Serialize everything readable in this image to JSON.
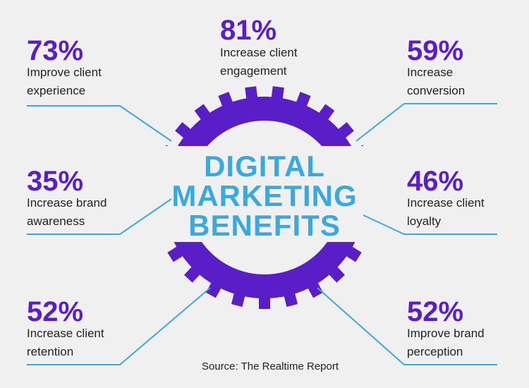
{
  "title": {
    "lines": [
      "DIGITAL",
      "MARKETING",
      "BENEFITS"
    ]
  },
  "stats": [
    {
      "percent": "73%",
      "label": [
        "Improve client",
        "experience"
      ]
    },
    {
      "percent": "81%",
      "label": [
        "Increase client",
        "engagement"
      ]
    },
    {
      "percent": "59%",
      "label": [
        "Increase",
        "conversion"
      ]
    },
    {
      "percent": "35%",
      "label": [
        "Increase brand",
        "awareness"
      ]
    },
    {
      "percent": "46%",
      "label": [
        "Increase client",
        "loyalty"
      ]
    },
    {
      "percent": "52%",
      "label": [
        "Increase client",
        "retention"
      ]
    },
    {
      "percent": "52%",
      "label": [
        "Improve brand",
        "perception"
      ]
    }
  ],
  "source": "Source: The Realtime Report"
}
